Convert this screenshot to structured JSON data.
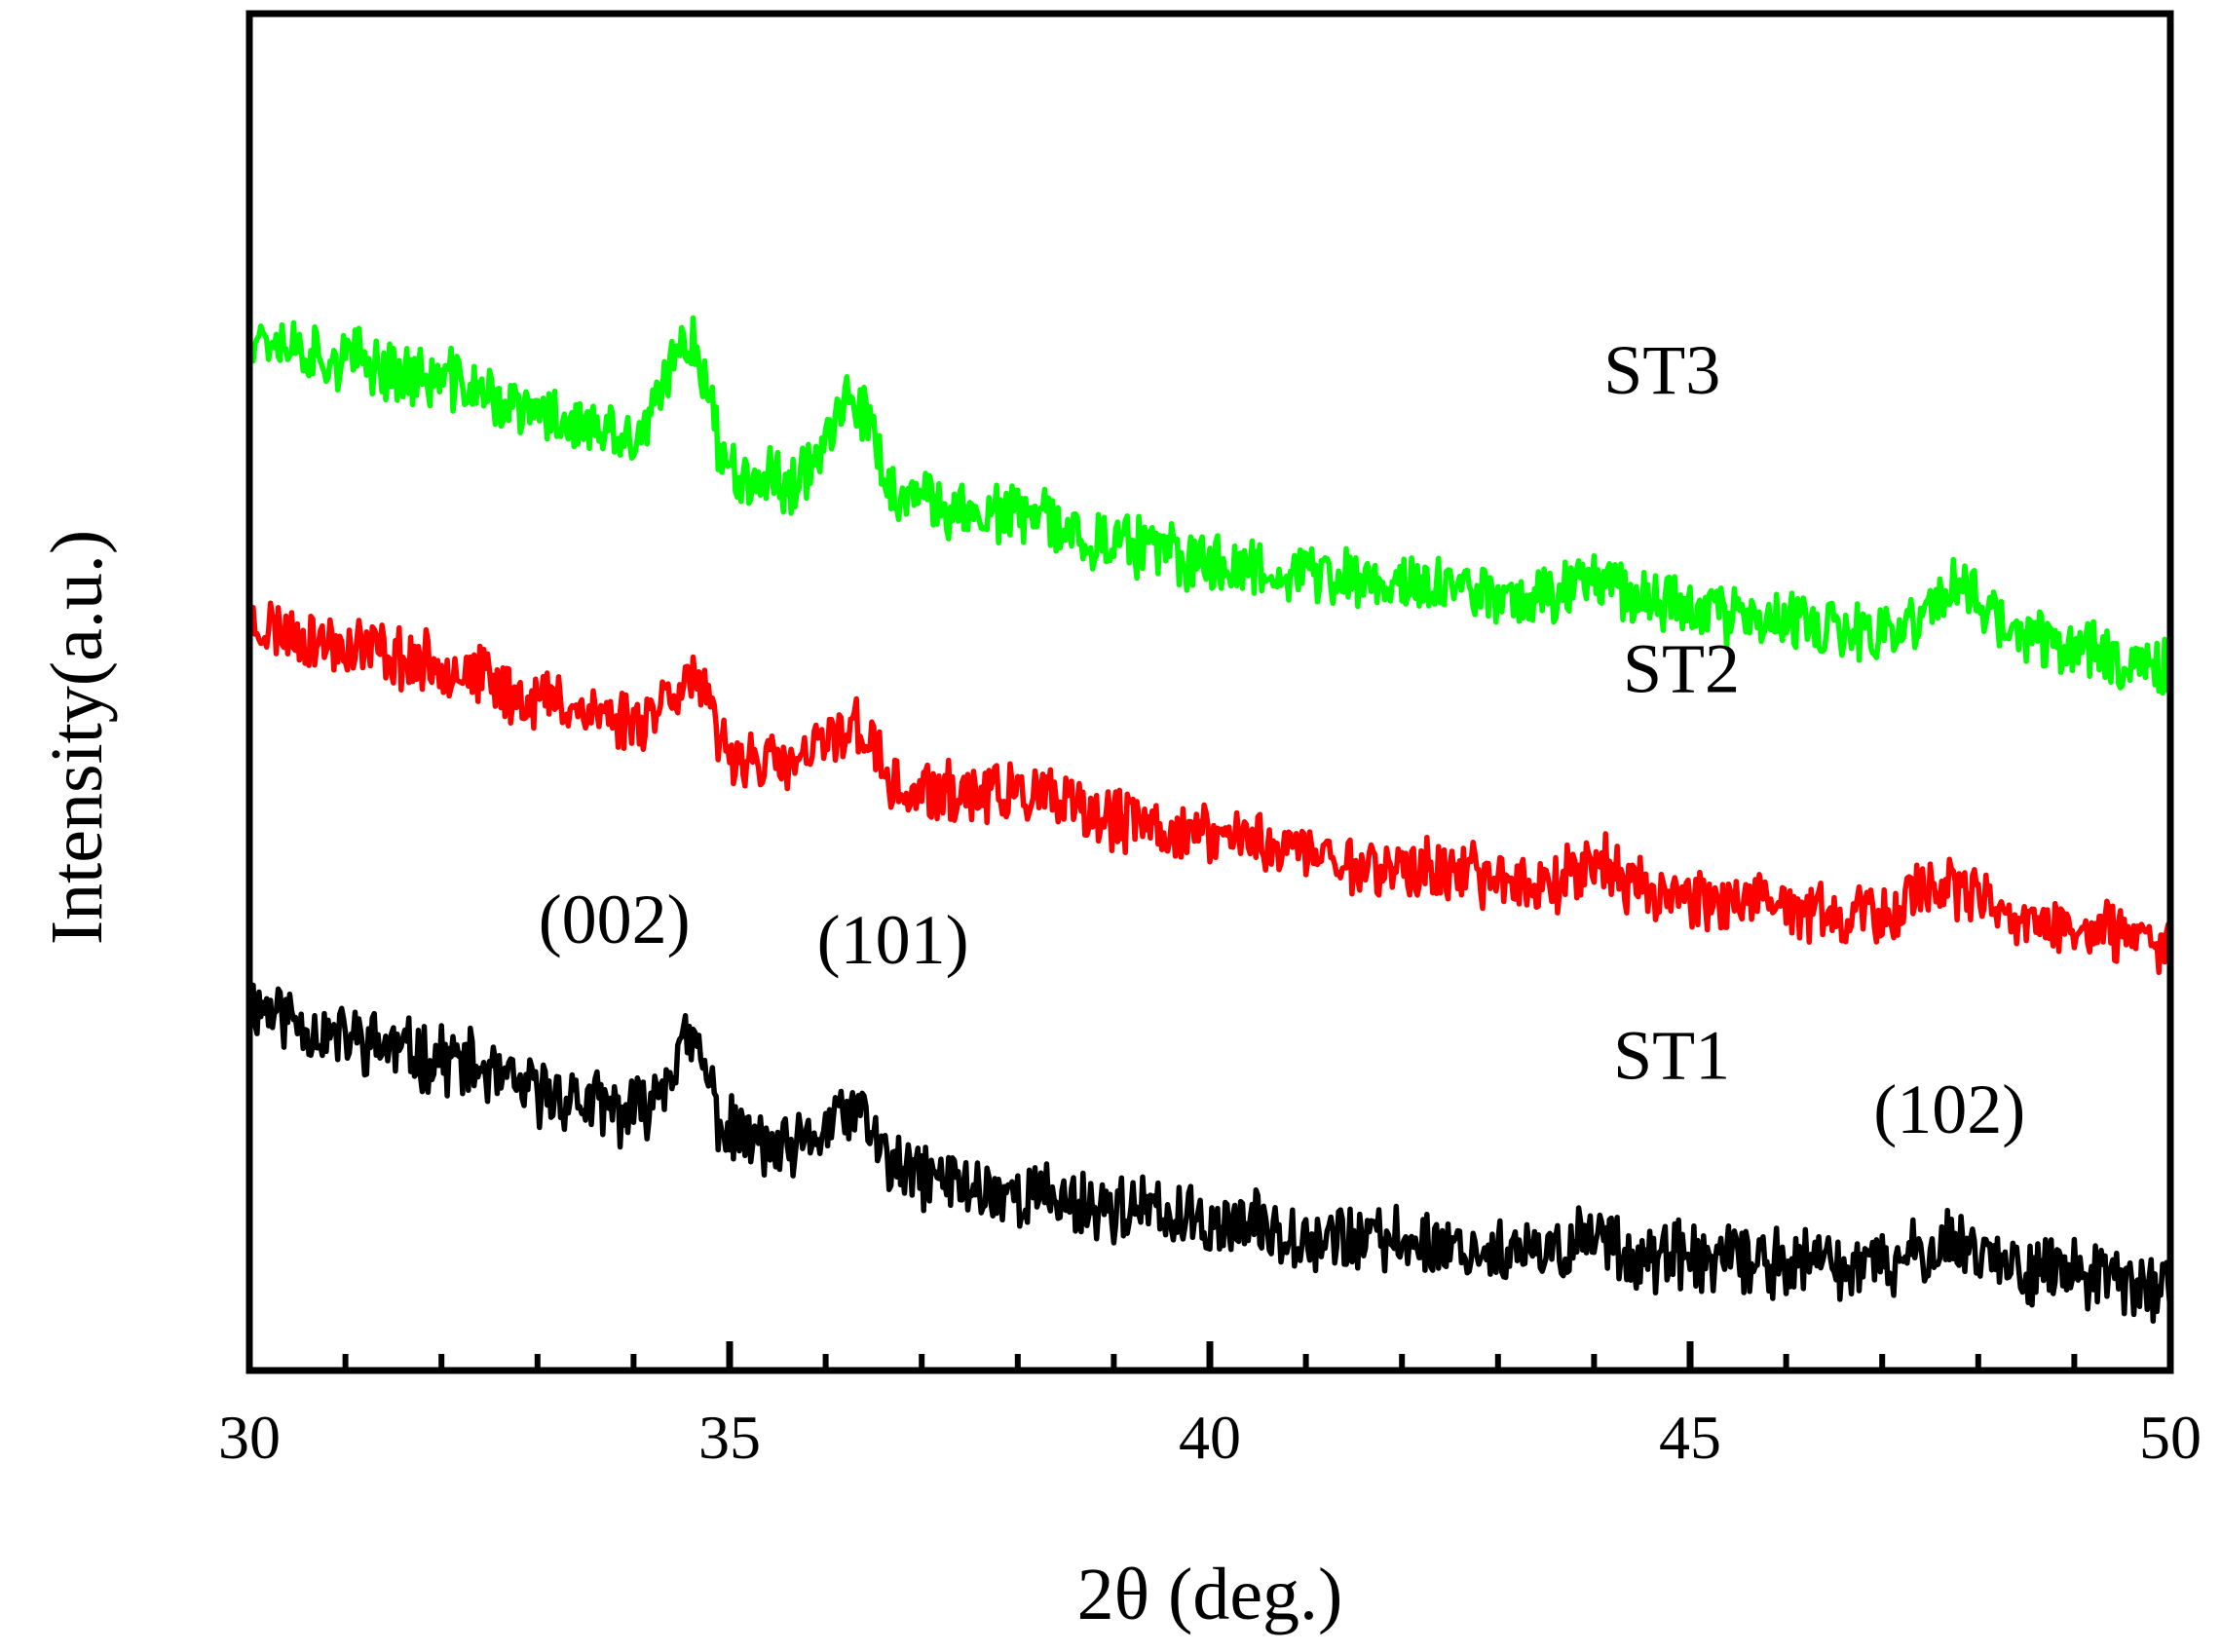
{
  "chart_data": {
    "type": "line",
    "title": "",
    "xlabel": "2θ (deg.)",
    "ylabel": "Intensity(a.u.)",
    "xlim": [
      30,
      50
    ],
    "ylim": [
      0,
      100
    ],
    "xticks_major": [
      30,
      35,
      40,
      45,
      50
    ],
    "xtick_labels": [
      "30",
      "35",
      "40",
      "45",
      "50"
    ],
    "xticks_minor": [
      31,
      32,
      33,
      34,
      36,
      37,
      38,
      39,
      41,
      42,
      43,
      44,
      46,
      47,
      48,
      49
    ],
    "y_axis_ticks": "none",
    "legend": "none (series labelled inline)",
    "series": [
      {
        "name": "ST1",
        "color": "#000000",
        "noise": 2.2,
        "seed": 11,
        "points": [
          [
            30,
            27
          ],
          [
            31,
            24.5
          ],
          [
            32,
            23
          ],
          [
            33,
            20.5
          ],
          [
            34,
            19
          ],
          [
            34.6,
            24
          ],
          [
            35,
            17.5
          ],
          [
            35.6,
            16
          ],
          [
            36.3,
            19
          ],
          [
            36.8,
            14.5
          ],
          [
            38,
            13
          ],
          [
            39,
            12
          ],
          [
            40,
            10.8
          ],
          [
            42,
            9.5
          ],
          [
            43.5,
            8.4
          ],
          [
            44,
            10.2
          ],
          [
            44.5,
            8.3
          ],
          [
            46,
            8
          ],
          [
            47,
            7.6
          ],
          [
            47.7,
            9.5
          ],
          [
            48.5,
            7.6
          ],
          [
            50,
            6
          ]
        ]
      },
      {
        "name": "ST2",
        "color": "#ff0000",
        "noise": 2.0,
        "seed": 23,
        "points": [
          [
            30,
            55
          ],
          [
            31,
            53.5
          ],
          [
            32,
            52
          ],
          [
            33,
            49.5
          ],
          [
            34,
            48
          ],
          [
            34.6,
            51
          ],
          [
            35,
            45.5
          ],
          [
            35.6,
            44.5
          ],
          [
            36.3,
            47.5
          ],
          [
            36.8,
            42.5
          ],
          [
            38,
            42.5
          ],
          [
            39,
            40.5
          ],
          [
            40,
            39.5
          ],
          [
            42,
            37
          ],
          [
            43.5,
            36
          ],
          [
            44,
            37.5
          ],
          [
            44.5,
            35.5
          ],
          [
            46,
            34
          ],
          [
            47,
            33.3
          ],
          [
            47.5,
            36
          ],
          [
            48.5,
            33
          ],
          [
            50,
            31.5
          ]
        ]
      },
      {
        "name": "ST3",
        "color": "#00ff00",
        "noise": 2.0,
        "seed": 37,
        "points": [
          [
            30,
            76.5
          ],
          [
            31,
            74.5
          ],
          [
            32,
            73
          ],
          [
            33,
            70.5
          ],
          [
            34,
            68.5
          ],
          [
            34.6,
            76
          ],
          [
            35,
            66.5
          ],
          [
            35.6,
            65.5
          ],
          [
            36.3,
            71
          ],
          [
            36.8,
            64
          ],
          [
            38,
            63
          ],
          [
            39,
            61
          ],
          [
            40,
            59.5
          ],
          [
            42,
            58
          ],
          [
            43.5,
            57
          ],
          [
            44,
            59
          ],
          [
            44.5,
            57
          ],
          [
            46,
            55
          ],
          [
            47,
            54
          ],
          [
            47.8,
            57.5
          ],
          [
            48.5,
            54
          ],
          [
            50,
            52
          ]
        ]
      }
    ],
    "series_labels": [
      {
        "text": "ST3",
        "x": 44.1,
        "y": 72.0
      },
      {
        "text": "ST2",
        "x": 44.3,
        "y": 50.0
      },
      {
        "text": "ST1",
        "x": 44.2,
        "y": 21.5
      }
    ],
    "annotations": [
      {
        "text": "(002)",
        "x": 33.8,
        "y": 31.5
      },
      {
        "text": "(101)",
        "x": 36.7,
        "y": 30.0
      },
      {
        "text": "(102)",
        "x": 47.7,
        "y": 17.5
      }
    ]
  }
}
